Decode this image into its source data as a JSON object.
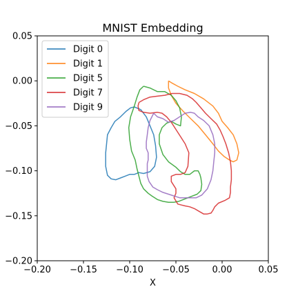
{
  "chart_data": {
    "type": "line",
    "title": "MNIST Embedding",
    "xlabel": "X",
    "ylabel": "",
    "xlim": [
      -0.2,
      0.05
    ],
    "ylim": [
      -0.2,
      0.05
    ],
    "xticks": [
      -0.2,
      -0.15,
      -0.1,
      -0.05,
      0.0,
      0.05
    ],
    "xtick_labels": [
      "−0.20",
      "−0.15",
      "−0.10",
      "−0.05",
      "0.00",
      "0.05"
    ],
    "yticks": [
      -0.2,
      -0.15,
      -0.1,
      -0.05,
      0.0,
      0.05
    ],
    "ytick_labels": [
      "−0.20",
      "−0.15",
      "−0.10",
      "−0.05",
      "0.00",
      "0.05"
    ],
    "grid": false,
    "legend_position": "top-left",
    "series": [
      {
        "name": "Digit 0",
        "color": "#1f77b4",
        "x": [
          -0.095,
          -0.088,
          -0.082,
          -0.078,
          -0.074,
          -0.072,
          -0.071,
          -0.073,
          -0.078,
          -0.085,
          -0.09,
          -0.095,
          -0.1,
          -0.105,
          -0.11,
          -0.115,
          -0.12,
          -0.124,
          -0.126,
          -0.126,
          -0.124,
          -0.12,
          -0.116,
          -0.11,
          -0.104,
          -0.099,
          -0.095
        ],
        "y": [
          -0.029,
          -0.032,
          -0.04,
          -0.05,
          -0.06,
          -0.072,
          -0.085,
          -0.095,
          -0.101,
          -0.103,
          -0.102,
          -0.104,
          -0.104,
          -0.106,
          -0.108,
          -0.11,
          -0.109,
          -0.105,
          -0.095,
          -0.08,
          -0.06,
          -0.052,
          -0.045,
          -0.04,
          -0.034,
          -0.03,
          -0.029
        ]
      },
      {
        "name": "Digit 1",
        "color": "#ff7f0e",
        "x": [
          -0.058,
          -0.055,
          -0.048,
          -0.04,
          -0.03,
          -0.02,
          -0.01,
          -0.004,
          0.0,
          0.006,
          0.012,
          0.016,
          0.018,
          0.016,
          0.012,
          0.008,
          0.002,
          -0.004,
          -0.01,
          -0.018,
          -0.026,
          -0.034,
          -0.042,
          -0.05,
          -0.055,
          -0.058,
          -0.058
        ],
        "y": [
          0.0,
          -0.002,
          -0.006,
          -0.01,
          -0.014,
          -0.02,
          -0.028,
          -0.036,
          -0.045,
          -0.052,
          -0.06,
          -0.07,
          -0.08,
          -0.088,
          -0.09,
          -0.088,
          -0.084,
          -0.078,
          -0.07,
          -0.06,
          -0.05,
          -0.042,
          -0.034,
          -0.025,
          -0.016,
          -0.008,
          0.0
        ]
      },
      {
        "name": "Digit 5",
        "color": "#2ca02c",
        "x": [
          -0.085,
          -0.078,
          -0.07,
          -0.062,
          -0.055,
          -0.05,
          -0.046,
          -0.044,
          -0.045,
          -0.05,
          -0.055,
          -0.06,
          -0.065,
          -0.068,
          -0.068,
          -0.064,
          -0.058,
          -0.05,
          -0.045,
          -0.04,
          -0.035,
          -0.03,
          -0.026,
          -0.024,
          -0.023,
          -0.022,
          -0.023,
          -0.027,
          -0.032,
          -0.037,
          -0.042,
          -0.047,
          -0.052,
          -0.058,
          -0.064,
          -0.07,
          -0.076,
          -0.08,
          -0.085,
          -0.088,
          -0.09,
          -0.092,
          -0.094,
          -0.098,
          -0.1,
          -0.101,
          -0.099,
          -0.095,
          -0.092,
          -0.089,
          -0.085
        ],
        "y": [
          -0.006,
          -0.008,
          -0.012,
          -0.012,
          -0.016,
          -0.022,
          -0.03,
          -0.04,
          -0.05,
          -0.048,
          -0.045,
          -0.047,
          -0.052,
          -0.06,
          -0.07,
          -0.082,
          -0.09,
          -0.096,
          -0.101,
          -0.104,
          -0.104,
          -0.1,
          -0.1,
          -0.104,
          -0.108,
          -0.115,
          -0.122,
          -0.126,
          -0.128,
          -0.13,
          -0.132,
          -0.134,
          -0.135,
          -0.135,
          -0.134,
          -0.132,
          -0.128,
          -0.125,
          -0.12,
          -0.114,
          -0.106,
          -0.098,
          -0.088,
          -0.078,
          -0.065,
          -0.052,
          -0.04,
          -0.028,
          -0.018,
          -0.01,
          -0.006
        ]
      },
      {
        "name": "Digit 7",
        "color": "#d62728",
        "x": [
          -0.09,
          -0.085,
          -0.078,
          -0.07,
          -0.062,
          -0.054,
          -0.046,
          -0.038,
          -0.032,
          -0.028,
          -0.023,
          -0.018,
          -0.012,
          -0.006,
          -0.002,
          0.001,
          0.004,
          0.007,
          0.009,
          0.01,
          0.01,
          0.009,
          0.009,
          0.008,
          0.003,
          -0.004,
          -0.008,
          -0.01,
          -0.012,
          -0.016,
          -0.02,
          -0.025,
          -0.03,
          -0.035,
          -0.04,
          -0.044,
          -0.048,
          -0.052,
          -0.05,
          -0.05,
          -0.055,
          -0.055,
          -0.05,
          -0.045,
          -0.04,
          -0.037,
          -0.036,
          -0.04,
          -0.045,
          -0.05,
          -0.055,
          -0.06,
          -0.065,
          -0.07,
          -0.078,
          -0.085,
          -0.09,
          -0.091,
          -0.09
        ],
        "y": [
          -0.024,
          -0.021,
          -0.018,
          -0.017,
          -0.016,
          -0.014,
          -0.014,
          -0.016,
          -0.02,
          -0.024,
          -0.03,
          -0.036,
          -0.042,
          -0.048,
          -0.055,
          -0.062,
          -0.07,
          -0.08,
          -0.09,
          -0.1,
          -0.11,
          -0.118,
          -0.124,
          -0.13,
          -0.133,
          -0.136,
          -0.14,
          -0.144,
          -0.147,
          -0.148,
          -0.148,
          -0.145,
          -0.142,
          -0.14,
          -0.139,
          -0.138,
          -0.137,
          -0.13,
          -0.125,
          -0.12,
          -0.112,
          -0.106,
          -0.104,
          -0.104,
          -0.102,
          -0.095,
          -0.08,
          -0.07,
          -0.062,
          -0.054,
          -0.046,
          -0.04,
          -0.036,
          -0.035,
          -0.036,
          -0.035,
          -0.033,
          -0.028,
          -0.024
        ]
      },
      {
        "name": "Digit 9",
        "color": "#9467bd",
        "x": [
          -0.074,
          -0.07,
          -0.064,
          -0.058,
          -0.052,
          -0.046,
          -0.04,
          -0.034,
          -0.03,
          -0.026,
          -0.02,
          -0.014,
          -0.01,
          -0.008,
          -0.008,
          -0.009,
          -0.01,
          -0.012,
          -0.016,
          -0.022,
          -0.028,
          -0.034,
          -0.04,
          -0.046,
          -0.052,
          -0.058,
          -0.064,
          -0.07,
          -0.075,
          -0.079,
          -0.081,
          -0.081,
          -0.081,
          -0.08,
          -0.08,
          -0.082,
          -0.082,
          -0.081,
          -0.08,
          -0.078,
          -0.074
        ],
        "y": [
          -0.036,
          -0.04,
          -0.042,
          -0.046,
          -0.044,
          -0.04,
          -0.036,
          -0.035,
          -0.036,
          -0.04,
          -0.044,
          -0.05,
          -0.06,
          -0.07,
          -0.08,
          -0.09,
          -0.1,
          -0.11,
          -0.12,
          -0.127,
          -0.13,
          -0.13,
          -0.13,
          -0.13,
          -0.128,
          -0.126,
          -0.124,
          -0.121,
          -0.118,
          -0.112,
          -0.106,
          -0.1,
          -0.092,
          -0.088,
          -0.08,
          -0.075,
          -0.068,
          -0.06,
          -0.052,
          -0.044,
          -0.036
        ]
      }
    ]
  }
}
